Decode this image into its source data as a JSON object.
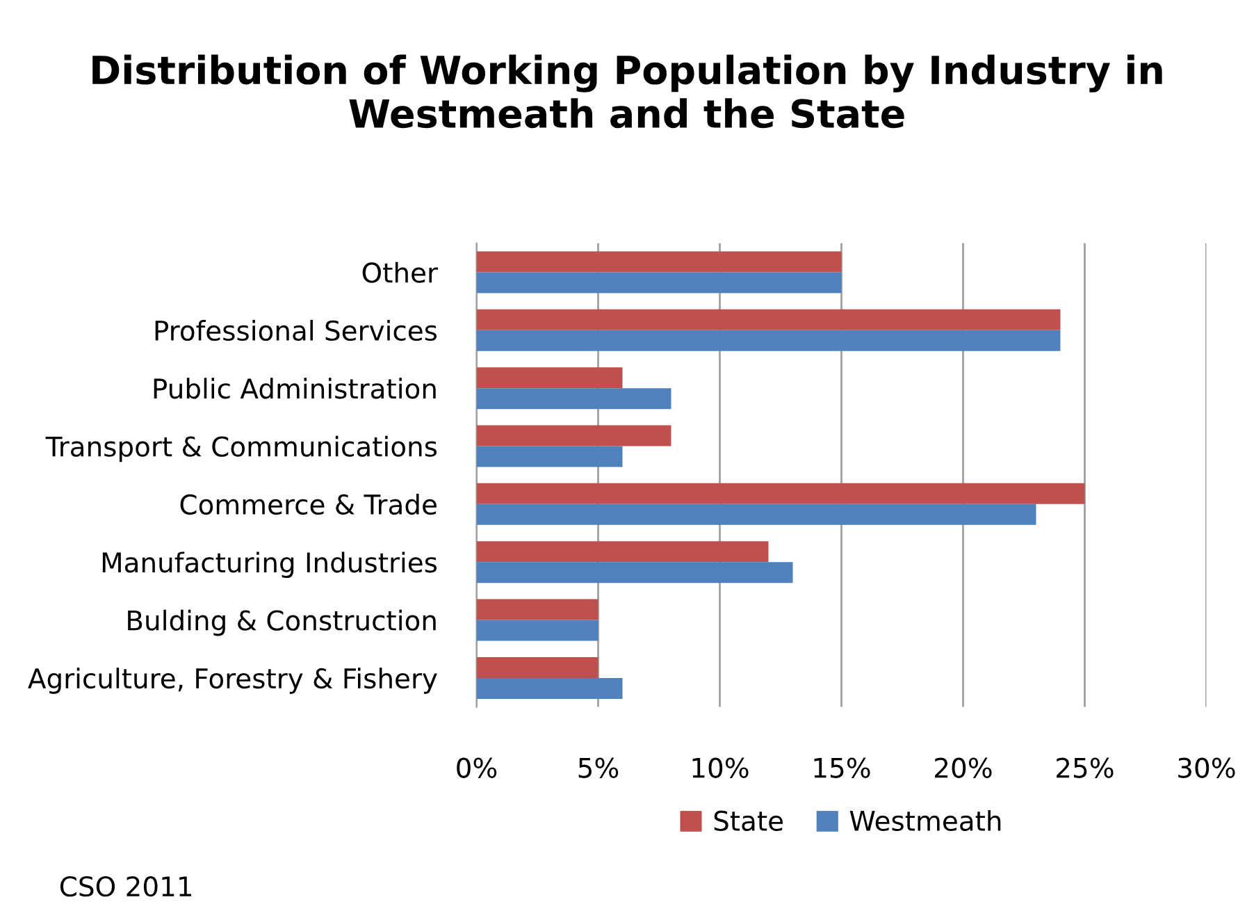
{
  "chart_data": {
    "type": "bar",
    "orientation": "horizontal",
    "title": "Distribution of Working Population by Industry in Westmeath and the State",
    "categories": [
      "Other",
      "Professional Services",
      "Public Administration",
      "Transport & Communications",
      "Commerce & Trade",
      "Manufacturing Industries",
      "Bulding & Construction",
      "Agriculture, Forestry & Fishery"
    ],
    "series": [
      {
        "name": "State",
        "color": "#c0504d",
        "values": [
          15,
          24,
          6,
          8,
          25,
          12,
          5,
          5
        ]
      },
      {
        "name": "Westmeath",
        "color": "#4f81bd",
        "values": [
          15,
          24,
          8,
          6,
          23,
          13,
          5,
          6
        ]
      }
    ],
    "xlim": [
      0,
      30
    ],
    "xticks": [
      {
        "value": 0,
        "label": "0%"
      },
      {
        "value": 5,
        "label": "5%"
      },
      {
        "value": 10,
        "label": "10%"
      },
      {
        "value": 15,
        "label": "15%"
      },
      {
        "value": 20,
        "label": "20%"
      },
      {
        "value": 25,
        "label": "25%"
      },
      {
        "value": 30,
        "label": "30%"
      }
    ],
    "grid": "x",
    "legend": "bottom",
    "annotations": [
      "CSO 2011"
    ]
  }
}
